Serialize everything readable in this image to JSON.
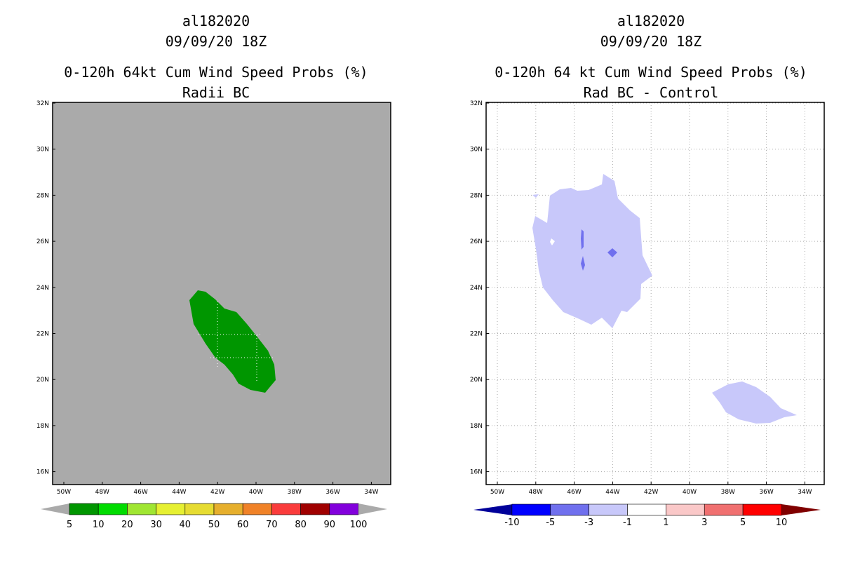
{
  "left_panel": {
    "storm_id": "al182020",
    "datetime": "09/09/20 18Z",
    "product": "0-120h 64kt Cum Wind Speed Probs (%)",
    "subtitle": "Radii BC",
    "background_color": "#aaaaaa",
    "region_color": "#009600"
  },
  "right_panel": {
    "storm_id": "al182020",
    "datetime": "09/09/20 18Z",
    "product": "0-120h 64 kt Cum Wind Speed Probs (%)",
    "subtitle": "Rad BC - Control",
    "region_color": "#c8c8fa",
    "dark_color": "#7070ee"
  },
  "map_axes": {
    "lat_labels": [
      "32N",
      "30N",
      "28N",
      "26N",
      "24N",
      "22N",
      "20N",
      "18N",
      "16N"
    ],
    "lon_labels": [
      "50W",
      "48W",
      "46W",
      "44W",
      "42W",
      "40W",
      "38W",
      "36W",
      "34W"
    ]
  },
  "left_colorbar": {
    "labels": [
      "5",
      "10",
      "20",
      "30",
      "40",
      "50",
      "60",
      "70",
      "80",
      "90",
      "100"
    ],
    "colors": [
      "#009600",
      "#00dc00",
      "#a0e632",
      "#e6f032",
      "#e6dc32",
      "#e6af2d",
      "#f08228",
      "#fa3c3c",
      "#a00000",
      "#8200dc"
    ],
    "end_color": "#aaaaaa"
  },
  "right_colorbar": {
    "labels": [
      "-10",
      "-5",
      "-3",
      "-1",
      "1",
      "3",
      "5",
      "10"
    ],
    "colors": [
      "#0000c8",
      "#0000ff",
      "#7070ee",
      "#c8c8fa",
      "#ffffff",
      "#fac8c8",
      "#f07070",
      "#ff0000"
    ],
    "low_end_color": "#00009a",
    "high_end_color": "#800000"
  }
}
